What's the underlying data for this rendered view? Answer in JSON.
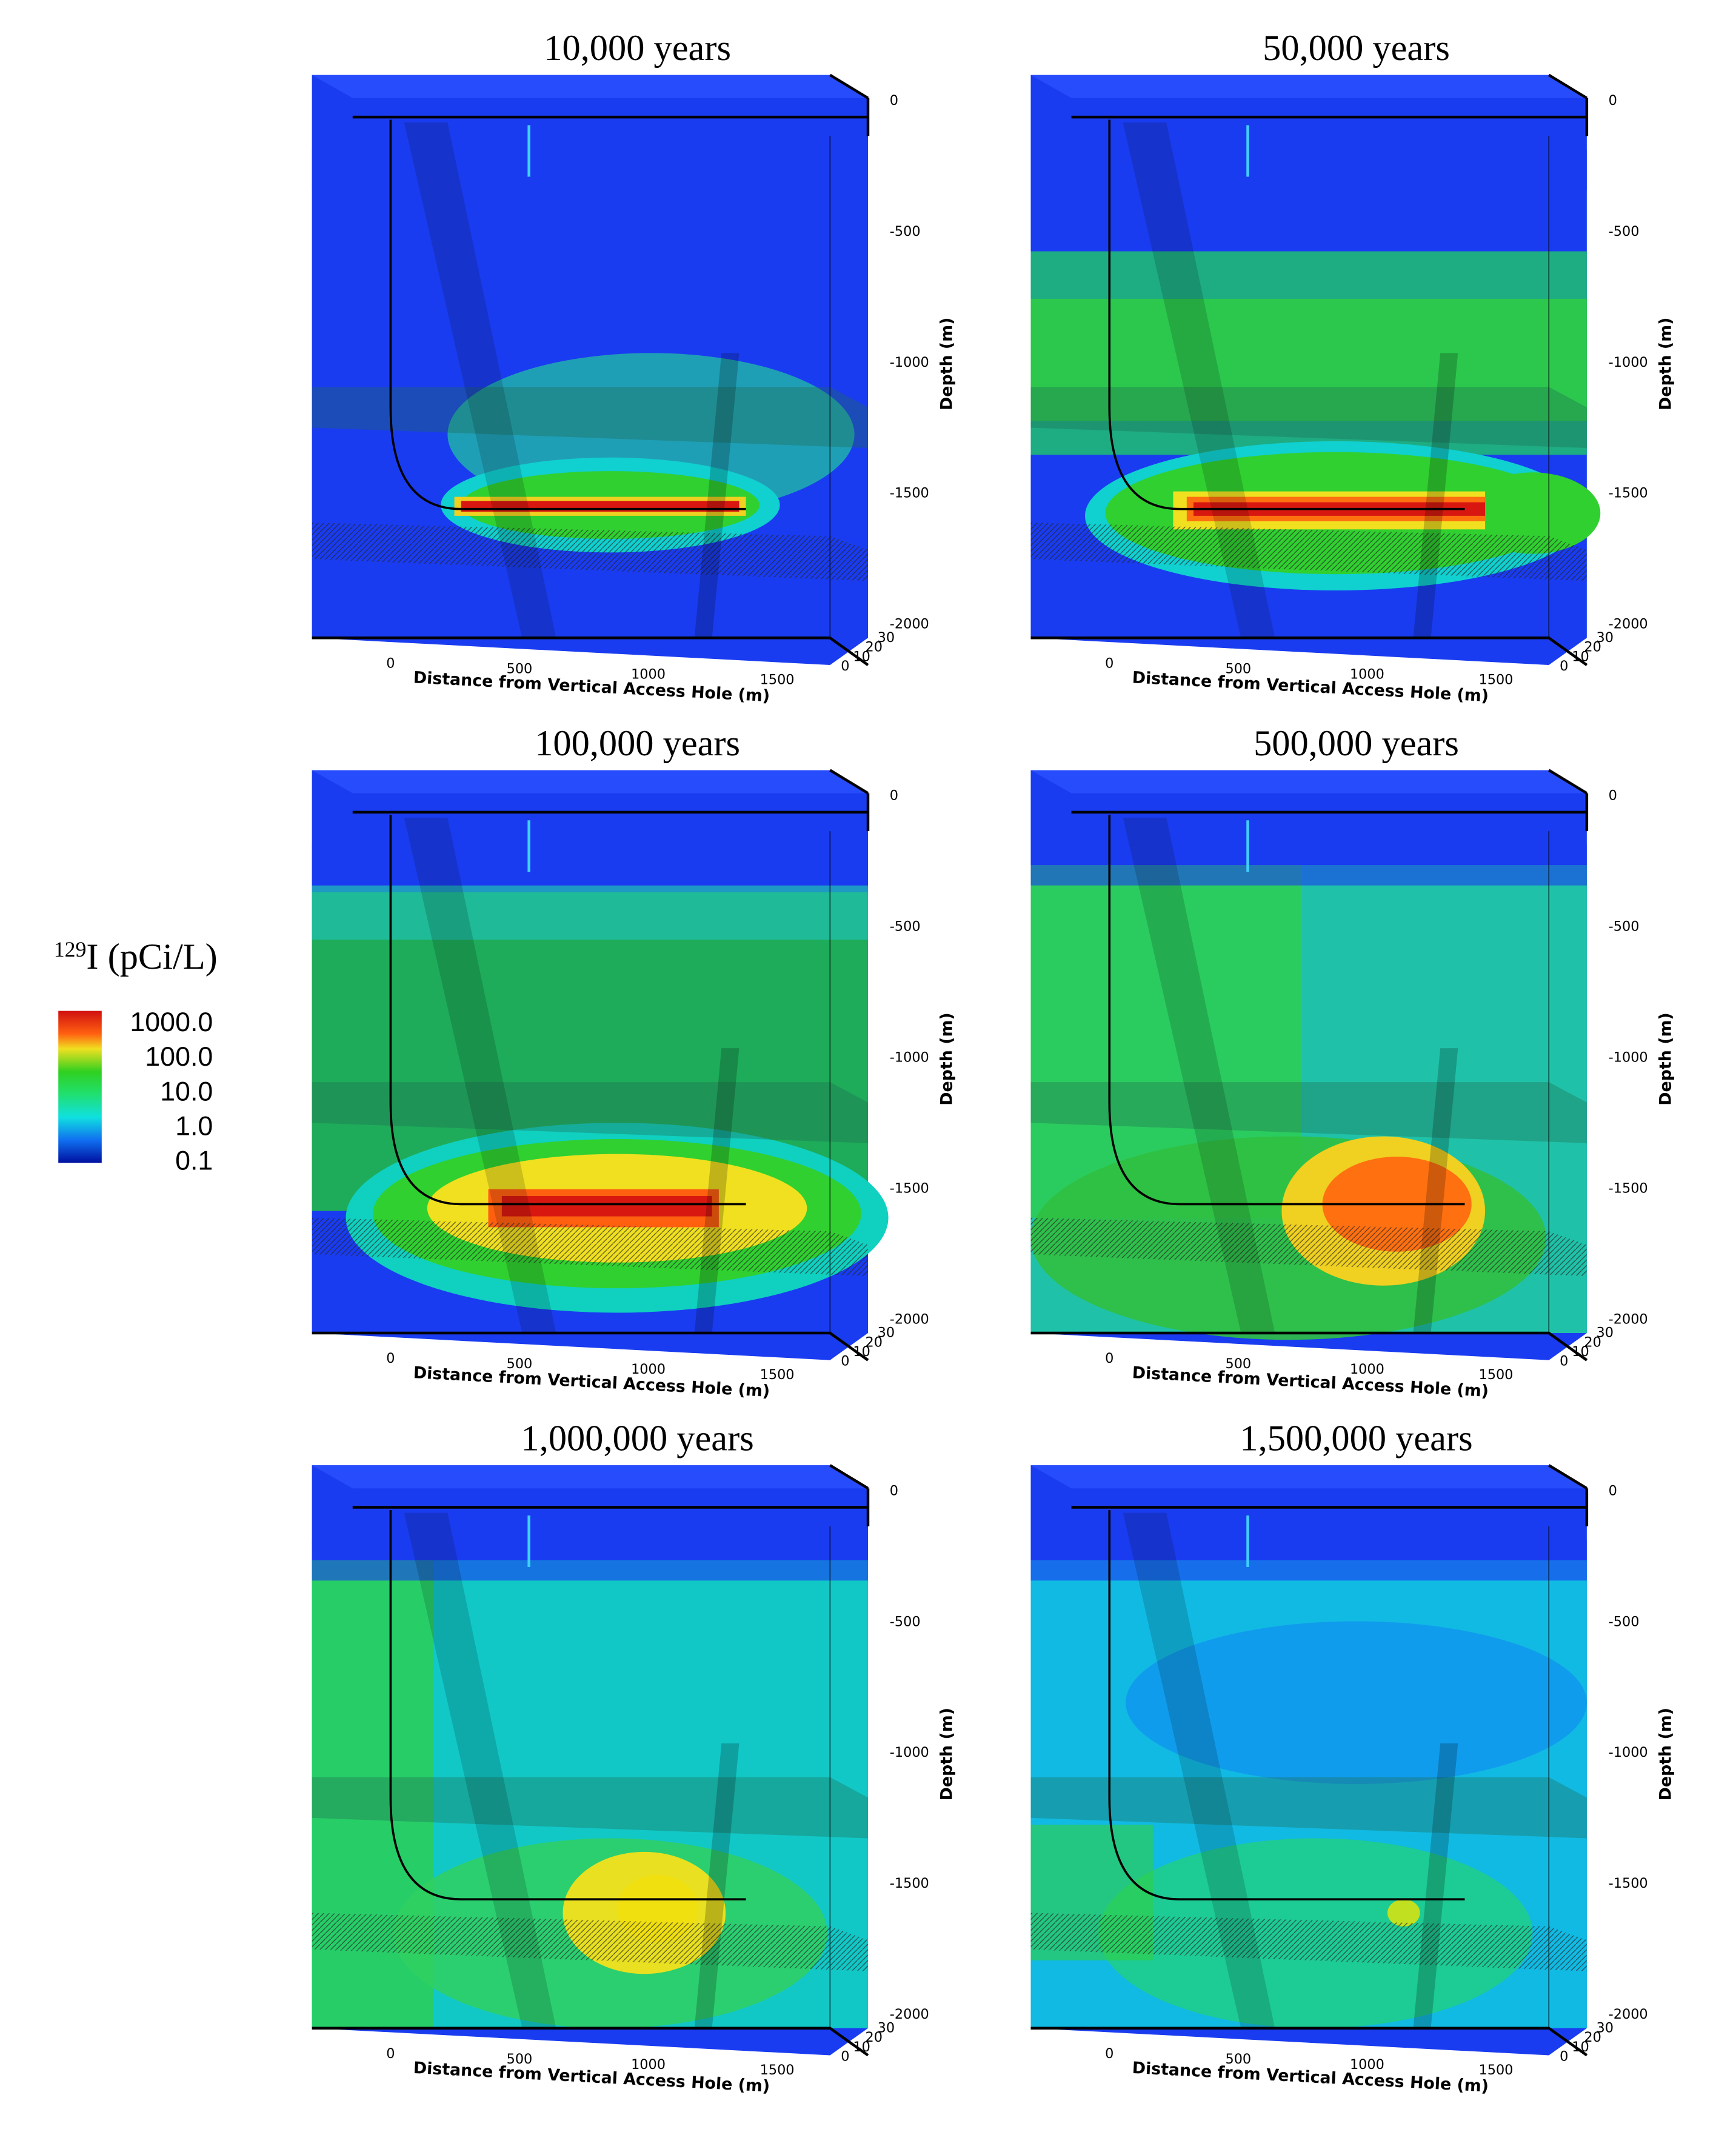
{
  "legend": {
    "title_sup": "129",
    "title": "I (pCi/L)",
    "labels": [
      "1000.0",
      "100.0",
      "10.0",
      "1.0",
      "0.1"
    ]
  },
  "axes": {
    "xticks": [
      "0",
      "500",
      "1000",
      "1500"
    ],
    "xlabel": "Distance from Vertical Access Hole (m)",
    "zticks": [
      "0",
      "-500",
      "-1000",
      "-1500",
      "-2000"
    ],
    "zlabel": "Depth (m)",
    "yticks": [
      "0",
      "10",
      "20",
      "30"
    ]
  },
  "panels": [
    {
      "title": "10,000 years"
    },
    {
      "title": "50,000 years"
    },
    {
      "title": "100,000 years"
    },
    {
      "title": "500,000 years"
    },
    {
      "title": "1,000,000 years"
    },
    {
      "title": "1,500,000 years"
    }
  ]
}
